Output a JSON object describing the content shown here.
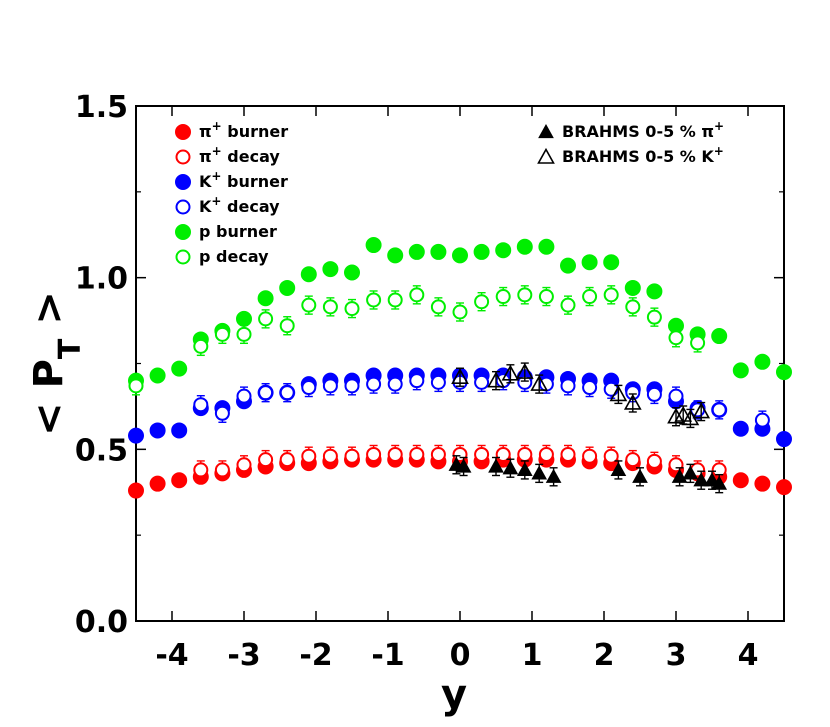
{
  "chart_data": {
    "type": "scatter",
    "xlabel": "y",
    "ylabel": "< P_T >",
    "xlim": [
      -4.5,
      4.5
    ],
    "ylim": [
      0.0,
      1.5
    ],
    "x_ticks": [
      -4,
      -3,
      -2,
      -1,
      0,
      1,
      2,
      3,
      4
    ],
    "x_tick_labels": [
      "-4",
      "-3",
      "-2",
      "-1",
      "0",
      "1",
      "2",
      "3",
      "4"
    ],
    "y_ticks": [
      0.0,
      0.5,
      1.0,
      1.5
    ],
    "y_tick_labels": [
      "0.0",
      "0.5",
      "1.0",
      "1.5"
    ],
    "grid": false,
    "legend_placement": "top-left and top-right",
    "series": [
      {
        "name": "π⁺ burner",
        "legend_base": "π",
        "legend_sup": "+",
        "legend_suffix": " burner",
        "color": "#ff0000",
        "marker": "circle-filled",
        "x": [
          -4.5,
          -4.2,
          -3.9,
          -3.6,
          -3.3,
          -3.0,
          -2.7,
          -2.4,
          -2.1,
          -1.8,
          -1.5,
          -1.2,
          -0.9,
          -0.6,
          -0.3,
          0.0,
          0.3,
          0.6,
          0.9,
          1.2,
          1.5,
          1.8,
          2.1,
          2.4,
          2.7,
          3.0,
          3.3,
          3.6,
          3.9,
          4.2,
          4.5
        ],
        "y": [
          0.38,
          0.4,
          0.41,
          0.42,
          0.43,
          0.44,
          0.45,
          0.46,
          0.46,
          0.465,
          0.47,
          0.47,
          0.47,
          0.47,
          0.465,
          0.465,
          0.465,
          0.47,
          0.47,
          0.47,
          0.47,
          0.465,
          0.46,
          0.46,
          0.45,
          0.44,
          0.43,
          0.42,
          0.41,
          0.4,
          0.39
        ]
      },
      {
        "name": "π⁺ decay",
        "legend_base": "π",
        "legend_sup": "+",
        "legend_suffix": " decay",
        "color": "#ff0000",
        "marker": "circle-open",
        "x": [
          -3.6,
          -3.3,
          -3.0,
          -2.7,
          -2.4,
          -2.1,
          -1.8,
          -1.5,
          -1.2,
          -0.9,
          -0.6,
          -0.3,
          0.0,
          0.3,
          0.6,
          0.9,
          1.2,
          1.5,
          1.8,
          2.1,
          2.4,
          2.7,
          3.0,
          3.3,
          3.6
        ],
        "y": [
          0.44,
          0.44,
          0.455,
          0.47,
          0.47,
          0.48,
          0.48,
          0.48,
          0.485,
          0.485,
          0.485,
          0.485,
          0.485,
          0.485,
          0.485,
          0.485,
          0.485,
          0.485,
          0.48,
          0.48,
          0.47,
          0.465,
          0.455,
          0.44,
          0.44
        ]
      },
      {
        "name": "K⁺ burner",
        "legend_base": "K",
        "legend_sup": "+",
        "legend_suffix": " burner",
        "color": "#0000ff",
        "marker": "circle-filled",
        "x": [
          -4.5,
          -4.2,
          -3.9,
          -3.6,
          -3.3,
          -3.0,
          -2.7,
          -2.4,
          -2.1,
          -1.8,
          -1.5,
          -1.2,
          -0.9,
          -0.6,
          -0.3,
          0.0,
          0.3,
          0.6,
          0.9,
          1.2,
          1.5,
          1.8,
          2.1,
          2.4,
          2.7,
          3.0,
          3.3,
          3.6,
          3.9,
          4.2,
          4.5
        ],
        "y": [
          0.54,
          0.555,
          0.555,
          0.62,
          0.62,
          0.64,
          0.665,
          0.665,
          0.69,
          0.7,
          0.7,
          0.715,
          0.715,
          0.715,
          0.715,
          0.715,
          0.715,
          0.715,
          0.71,
          0.71,
          0.705,
          0.7,
          0.7,
          0.675,
          0.675,
          0.64,
          0.62,
          0.615,
          0.56,
          0.56,
          0.53
        ]
      },
      {
        "name": "K⁺ decay",
        "legend_base": "K",
        "legend_sup": "+",
        "legend_suffix": " decay",
        "color": "#0000ff",
        "marker": "circle-open",
        "x": [
          -3.6,
          -3.3,
          -3.0,
          -2.7,
          -2.4,
          -2.1,
          -1.8,
          -1.5,
          -1.2,
          -0.9,
          -0.6,
          -0.3,
          0.0,
          0.3,
          0.6,
          0.9,
          1.2,
          1.5,
          1.8,
          2.1,
          2.4,
          2.7,
          3.0,
          3.3,
          3.6,
          4.2
        ],
        "y": [
          0.63,
          0.605,
          0.655,
          0.665,
          0.665,
          0.68,
          0.685,
          0.685,
          0.69,
          0.69,
          0.7,
          0.695,
          0.695,
          0.695,
          0.7,
          0.695,
          0.69,
          0.685,
          0.68,
          0.675,
          0.665,
          0.66,
          0.655,
          0.615,
          0.615,
          0.585
        ]
      },
      {
        "name": "p burner",
        "legend_base": "p",
        "legend_sup": "",
        "legend_suffix": " burner",
        "color": "#00ee00",
        "marker": "circle-filled",
        "x": [
          -4.5,
          -4.2,
          -3.9,
          -3.6,
          -3.3,
          -3.0,
          -2.7,
          -2.4,
          -2.1,
          -1.8,
          -1.5,
          -1.2,
          -0.9,
          -0.6,
          -0.3,
          0.0,
          0.3,
          0.6,
          0.9,
          1.2,
          1.5,
          1.8,
          2.1,
          2.4,
          2.7,
          3.0,
          3.3,
          3.6,
          3.9,
          4.2,
          4.5
        ],
        "y": [
          0.7,
          0.715,
          0.735,
          0.82,
          0.845,
          0.88,
          0.94,
          0.97,
          1.01,
          1.025,
          1.015,
          1.095,
          1.065,
          1.075,
          1.075,
          1.065,
          1.075,
          1.08,
          1.09,
          1.09,
          1.035,
          1.045,
          1.045,
          0.97,
          0.96,
          0.86,
          0.835,
          0.83,
          0.73,
          0.755,
          0.725
        ]
      },
      {
        "name": "p decay",
        "legend_base": "p",
        "legend_sup": "",
        "legend_suffix": " decay",
        "color": "#00ee00",
        "marker": "circle-open",
        "x": [
          -4.5,
          -3.6,
          -3.3,
          -3.0,
          -2.7,
          -2.4,
          -2.1,
          -1.8,
          -1.5,
          -1.2,
          -0.9,
          -0.6,
          -0.3,
          0.0,
          0.3,
          0.6,
          0.9,
          1.2,
          1.5,
          1.8,
          2.1,
          2.4,
          2.7,
          3.0,
          3.3
        ],
        "y": [
          0.685,
          0.8,
          0.835,
          0.835,
          0.88,
          0.86,
          0.92,
          0.915,
          0.91,
          0.935,
          0.935,
          0.95,
          0.915,
          0.9,
          0.93,
          0.945,
          0.95,
          0.945,
          0.92,
          0.945,
          0.95,
          0.915,
          0.885,
          0.825,
          0.81
        ]
      },
      {
        "name": "BRAHMS 0-5 % π⁺",
        "legend_base": "BRAHMS 0-5 % π",
        "legend_sup": "+",
        "legend_suffix": "",
        "color": "#000000",
        "marker": "triangle-filled",
        "x": [
          -0.05,
          0.05,
          0.5,
          0.7,
          0.9,
          1.1,
          1.3,
          2.2,
          2.5,
          3.05,
          3.2,
          3.35,
          3.5,
          3.6
        ],
        "y": [
          0.455,
          0.45,
          0.45,
          0.445,
          0.44,
          0.43,
          0.42,
          0.44,
          0.42,
          0.42,
          0.43,
          0.41,
          0.41,
          0.4
        ]
      },
      {
        "name": "BRAHMS 0-5 % K⁺",
        "legend_base": "BRAHMS 0-5 % K",
        "legend_sup": "+",
        "legend_suffix": "",
        "color": "#000000",
        "marker": "triangle-open",
        "x": [
          0.0,
          0.5,
          0.7,
          0.9,
          1.1,
          2.2,
          2.4,
          3.0,
          3.1,
          3.2,
          3.35
        ],
        "y": [
          0.71,
          0.7,
          0.72,
          0.725,
          0.69,
          0.66,
          0.635,
          0.595,
          0.6,
          0.59,
          0.61
        ]
      }
    ]
  }
}
